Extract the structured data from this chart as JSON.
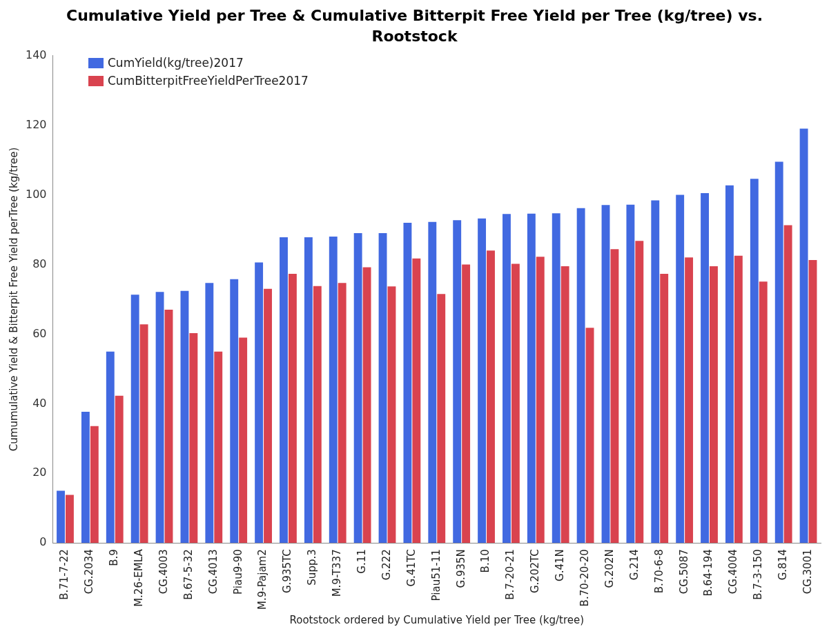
{
  "chart_data": {
    "type": "bar",
    "title": "Cumulative Yield per Tree & Cumulative Bitterpit Free Yield per Tree (kg/tree) vs. Rootstock",
    "xlabel": "Rootstock ordered by Cumulative Yield per Tree (kg/tree)",
    "ylabel": "Cumumulative Yield & Bitterpit Free Yield perTree (kg/tree)",
    "categories": [
      "B.71-7-22",
      "CG.2034",
      "B.9",
      "M.26-EMLA",
      "CG.4003",
      "B.67-5-32",
      "CG.4013",
      "Piau9-90",
      "M.9-Pajam2",
      "G.935TC",
      "Supp.3",
      "M.9-T337",
      "G.11",
      "G.222",
      "G.41TC",
      "Piau51-11",
      "G.935N",
      "B.10",
      "B.7-20-21",
      "G.202TC",
      "G.41N",
      "B.70-20-20",
      "G.202N",
      "G.214",
      "B.70-6-8",
      "CG.5087",
      "B.64-194",
      "CG.4004",
      "B.7-3-150",
      "G.814",
      "CG.3001"
    ],
    "series": [
      {
        "name": "CumYield(kg/tree)2017",
        "color": "#4169e1",
        "values": [
          15,
          37.7,
          55,
          71.3,
          72.1,
          72.4,
          74.7,
          75.8,
          80.6,
          87.8,
          87.8,
          88,
          89,
          89,
          92,
          92.2,
          92.7,
          93.2,
          94.5,
          94.6,
          94.7,
          96.2,
          97.1,
          97.2,
          98.4,
          100,
          100.5,
          102.7,
          104.6,
          109.5,
          119
        ]
      },
      {
        "name": "CumBitterpitFreeYieldPerTree2017",
        "color": "#d9434f",
        "values": [
          13.8,
          33.6,
          42.3,
          62.8,
          67,
          60.3,
          55,
          59,
          73,
          77.3,
          73.8,
          74.7,
          79.2,
          73.7,
          81.7,
          71.5,
          80,
          84,
          80.2,
          82.2,
          79.5,
          61.8,
          84.4,
          86.8,
          77.3,
          82,
          79.5,
          82.5,
          75.1,
          91.3,
          81.3
        ]
      }
    ],
    "ylim": [
      0,
      140
    ],
    "yticks": [
      0,
      20,
      40,
      60,
      80,
      100,
      120,
      140
    ],
    "grid": false,
    "legend": "top left"
  }
}
